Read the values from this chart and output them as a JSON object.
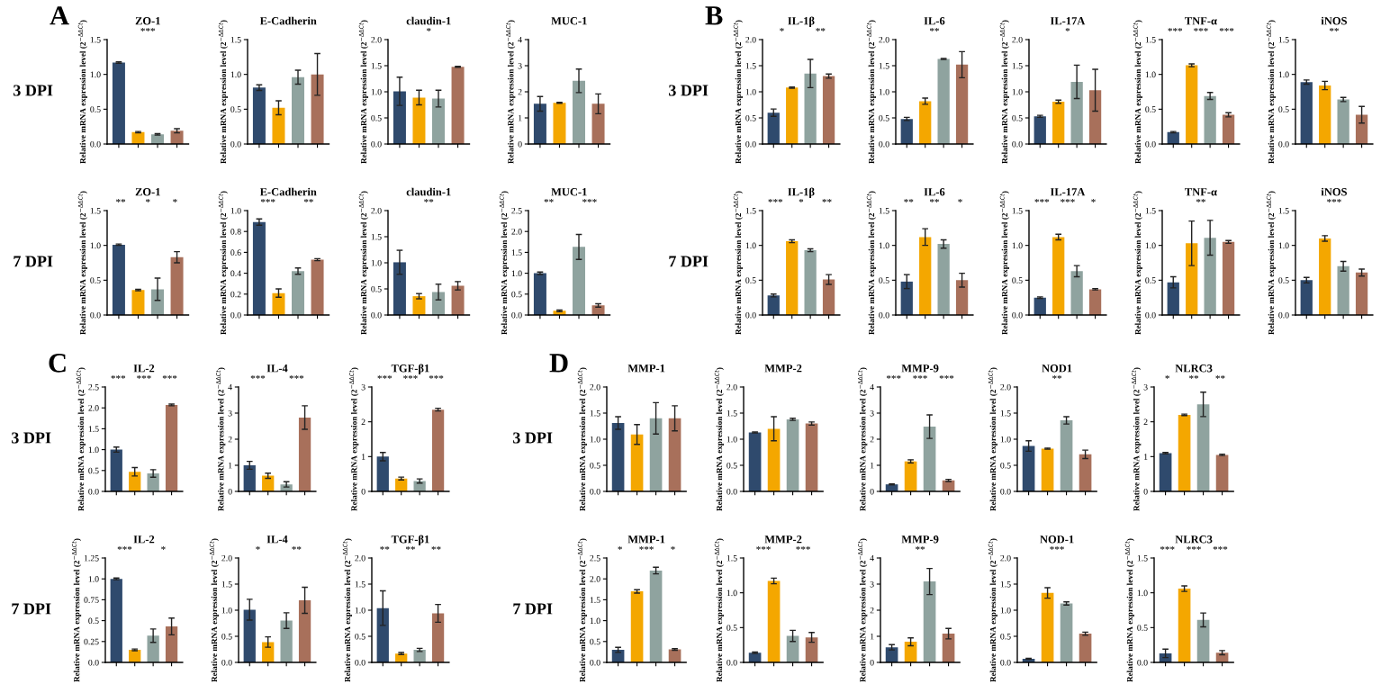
{
  "chart_data": [
    {
      "type": "bar",
      "title": "ZO-1",
      "ylabel": "Relative mRNA expression level (2$^{−ΔΔCt}$)",
      "categories": [
        null,
        null,
        null,
        null
      ],
      "values": [
        1.17,
        0.17,
        0.14,
        0.19
      ],
      "errors": [
        0.01,
        0.01,
        0.01,
        0.03
      ],
      "colors": [
        "#2f4a6d",
        "#f4a700",
        "#8fa39f",
        "#a8705b"
      ],
      "ylim": [
        0,
        1.5
      ],
      "yticks": [
        {
          "value": 0,
          "label": "0.0"
        },
        0.5,
        {
          "value": 1,
          "label": "1.0"
        },
        1.5
      ],
      "annotations": [
        "A",
        "3 DPI",
        "***"
      ]
    },
    {
      "type": "bar",
      "title": "E-Cadherin",
      "ylabel": "Relative mRNA expression level (2$^{−ΔΔCt}$)",
      "categories": [
        null,
        null,
        null,
        null
      ],
      "values": [
        0.81,
        0.52,
        0.96,
        1.0
      ],
      "errors": [
        0.04,
        0.1,
        0.1,
        0.3
      ],
      "colors": [
        "#2f4a6d",
        "#f4a700",
        "#8fa39f",
        "#a8705b"
      ],
      "ylim": [
        0,
        1.5
      ],
      "yticks": [
        {
          "value": 0,
          "label": "0.0"
        },
        0.5,
        {
          "value": 1,
          "label": "1.0"
        },
        1.5
      ]
    },
    {
      "type": "bar",
      "title": "claudin-1",
      "ylabel": "Relative mRNA expression level (2$^{−ΔΔCt}$)",
      "categories": [
        null,
        null,
        null,
        null
      ],
      "values": [
        1.01,
        0.89,
        0.87,
        1.48
      ],
      "errors": [
        0.27,
        0.14,
        0.16,
        0.01
      ],
      "colors": [
        "#2f4a6d",
        "#f4a700",
        "#8fa39f",
        "#a8705b"
      ],
      "ylim": [
        0,
        2.0
      ],
      "yticks": [
        {
          "value": 0,
          "label": "0.0"
        },
        0.5,
        {
          "value": 1,
          "label": "1.0"
        },
        1.5,
        {
          "value": 2,
          "label": "2.0"
        }
      ],
      "annotations": [
        "*"
      ]
    },
    {
      "type": "bar",
      "title": "MUC-1",
      "ylabel": "Relative mRNA expression level (2$^{−ΔΔCt}$)",
      "categories": [
        null,
        null,
        null,
        null
      ],
      "values": [
        1.54,
        1.58,
        2.42,
        1.54
      ],
      "errors": [
        0.28,
        0.02,
        0.45,
        0.38
      ],
      "colors": [
        "#2f4a6d",
        "#f4a700",
        "#8fa39f",
        "#a8705b"
      ],
      "ylim": [
        0,
        4
      ],
      "yticks": [
        0,
        1,
        2,
        3,
        4
      ]
    },
    {
      "type": "bar",
      "title": "ZO-1",
      "ylabel": "Relative mRNA expression level (2$^{−ΔΔCt}$)",
      "categories": [
        null,
        null,
        null,
        null
      ],
      "values": [
        1.01,
        0.36,
        0.37,
        0.83
      ],
      "errors": [
        0.01,
        0.01,
        0.16,
        0.08
      ],
      "colors": [
        "#2f4a6d",
        "#f4a700",
        "#8fa39f",
        "#a8705b"
      ],
      "ylim": [
        0,
        1.5
      ],
      "yticks": [
        {
          "value": 0,
          "label": "0.0"
        },
        0.5,
        {
          "value": 1,
          "label": "1.0"
        },
        1.5
      ],
      "annotations": [
        "7 DPI",
        "**",
        "*",
        "*"
      ]
    },
    {
      "type": "bar",
      "title": "E-Cadherin",
      "ylabel": "Relative mRNA expression level (2$^{−ΔΔCt}$)",
      "categories": [
        null,
        null,
        null,
        null
      ],
      "values": [
        0.89,
        0.21,
        0.42,
        0.53
      ],
      "errors": [
        0.03,
        0.04,
        0.03,
        0.01
      ],
      "colors": [
        "#2f4a6d",
        "#f4a700",
        "#8fa39f",
        "#a8705b"
      ],
      "ylim": [
        0,
        1.0
      ],
      "yticks": [
        {
          "value": 0,
          "label": "0.0"
        },
        0.2,
        0.4,
        0.6,
        0.8,
        {
          "value": 1,
          "label": "1.0"
        }
      ],
      "annotations": [
        "***",
        "**"
      ]
    },
    {
      "type": "bar",
      "title": "claudin-1",
      "ylabel": "Relative mRNA expression level (2$^{−ΔΔCt}$)",
      "categories": [
        null,
        null,
        null,
        null
      ],
      "values": [
        1.01,
        0.36,
        0.44,
        0.56
      ],
      "errors": [
        0.23,
        0.05,
        0.15,
        0.08
      ],
      "colors": [
        "#2f4a6d",
        "#f4a700",
        "#8fa39f",
        "#a8705b"
      ],
      "ylim": [
        0,
        2.0
      ],
      "yticks": [
        {
          "value": 0,
          "label": "0.0"
        },
        0.5,
        {
          "value": 1,
          "label": "1.0"
        },
        1.5,
        {
          "value": 2,
          "label": "2.0"
        }
      ],
      "annotations": [
        "**"
      ]
    },
    {
      "type": "bar",
      "title": "MUC-1",
      "ylabel": "Relative mRNA expression level (2$^{−ΔΔCt}$)",
      "categories": [
        null,
        null,
        null,
        null
      ],
      "values": [
        1.0,
        0.1,
        1.63,
        0.23
      ],
      "errors": [
        0.03,
        0.02,
        0.3,
        0.04
      ],
      "colors": [
        "#2f4a6d",
        "#f4a700",
        "#8fa39f",
        "#a8705b"
      ],
      "ylim": [
        0,
        2.5
      ],
      "yticks": [
        {
          "value": 0,
          "label": "0.0"
        },
        0.5,
        {
          "value": 1,
          "label": "1.0"
        },
        1.5,
        {
          "value": 2,
          "label": "2.0"
        },
        2.5
      ],
      "annotations": [
        "**",
        "***"
      ]
    },
    {
      "type": "bar",
      "title": "IL-1β",
      "ylabel": "Relative mRNA expression level (2$^{−ΔΔCt}$)",
      "categories": [
        null,
        null,
        null,
        null
      ],
      "values": [
        0.6,
        1.08,
        1.35,
        1.3
      ],
      "errors": [
        0.07,
        0.01,
        0.27,
        0.04
      ],
      "colors": [
        "#2f4a6d",
        "#f4a700",
        "#8fa39f",
        "#a8705b"
      ],
      "ylim": [
        0,
        2.0
      ],
      "yticks": [
        {
          "value": 0,
          "label": "0.0"
        },
        0.5,
        {
          "value": 1,
          "label": "1.0"
        },
        1.5,
        {
          "value": 2,
          "label": "2.0"
        }
      ],
      "annotations": [
        "B",
        "3 DPI",
        "*",
        "**"
      ]
    },
    {
      "type": "bar",
      "title": "IL-6",
      "ylabel": "Relative mRNA expression level (2$^{−ΔΔCt}$)",
      "categories": [
        null,
        null,
        null,
        null
      ],
      "values": [
        0.48,
        0.82,
        1.63,
        1.52
      ],
      "errors": [
        0.03,
        0.06,
        0.01,
        0.25
      ],
      "colors": [
        "#2f4a6d",
        "#f4a700",
        "#8fa39f",
        "#a8705b"
      ],
      "ylim": [
        0,
        2.0
      ],
      "yticks": [
        {
          "value": 0,
          "label": "0.0"
        },
        0.5,
        {
          "value": 1,
          "label": "1.0"
        },
        1.5,
        {
          "value": 2,
          "label": "2.0"
        }
      ],
      "annotations": [
        "**"
      ]
    },
    {
      "type": "bar",
      "title": "IL-17A",
      "ylabel": "Relative mRNA expression level (2$^{−ΔΔCt}$)",
      "categories": [
        null,
        null,
        null,
        null
      ],
      "values": [
        0.53,
        0.81,
        1.19,
        1.03
      ],
      "errors": [
        0.02,
        0.03,
        0.32,
        0.4
      ],
      "colors": [
        "#2f4a6d",
        "#f4a700",
        "#8fa39f",
        "#a8705b"
      ],
      "ylim": [
        0,
        2.0
      ],
      "yticks": [
        {
          "value": 0,
          "label": "0.0"
        },
        0.5,
        {
          "value": 1,
          "label": "1.0"
        },
        1.5,
        {
          "value": 2,
          "label": "2.0"
        }
      ],
      "annotations": [
        "*"
      ]
    },
    {
      "type": "bar",
      "title": "TNF-α",
      "ylabel": "Relative mRNA expression level (2$^{−ΔΔCt}$)",
      "categories": [
        null,
        null,
        null,
        null
      ],
      "values": [
        0.17,
        1.13,
        0.69,
        0.42
      ],
      "errors": [
        0.01,
        0.02,
        0.05,
        0.03
      ],
      "colors": [
        "#2f4a6d",
        "#f4a700",
        "#8fa39f",
        "#a8705b"
      ],
      "ylim": [
        0,
        1.5
      ],
      "yticks": [
        {
          "value": 0,
          "label": "0.0"
        },
        0.5,
        {
          "value": 1,
          "label": "1.0"
        },
        1.5
      ],
      "annotations": [
        "***",
        "***",
        "***"
      ]
    },
    {
      "type": "bar",
      "title": "iNOS",
      "ylabel": "Relative mRNA expression level (2$^{−ΔΔCt}$)",
      "categories": [
        null,
        null,
        null,
        null
      ],
      "values": [
        0.89,
        0.84,
        0.64,
        0.42
      ],
      "errors": [
        0.03,
        0.06,
        0.03,
        0.12
      ],
      "colors": [
        "#2f4a6d",
        "#f4a700",
        "#8fa39f",
        "#a8705b"
      ],
      "ylim": [
        0,
        1.5
      ],
      "yticks": [
        {
          "value": 0,
          "label": "0.0"
        },
        0.5,
        {
          "value": 1,
          "label": "1.0"
        },
        1.5
      ],
      "annotations": [
        "**"
      ]
    },
    {
      "type": "bar",
      "title": "IL-1β",
      "ylabel": "Relative mRNA expression level (2$^{−ΔΔCt}$)",
      "categories": [
        null,
        null,
        null,
        null
      ],
      "values": [
        0.28,
        1.06,
        0.93,
        0.51
      ],
      "errors": [
        0.02,
        0.02,
        0.02,
        0.07
      ],
      "colors": [
        "#2f4a6d",
        "#f4a700",
        "#8fa39f",
        "#a8705b"
      ],
      "ylim": [
        0,
        1.5
      ],
      "yticks": [
        {
          "value": 0,
          "label": "0.0"
        },
        0.5,
        {
          "value": 1,
          "label": "1.0"
        },
        1.5
      ],
      "annotations": [
        "7 DPI",
        "***",
        "*",
        "**"
      ]
    },
    {
      "type": "bar",
      "title": "IL-6",
      "ylabel": "Relative mRNA expression level (2$^{−ΔΔCt}$)",
      "categories": [
        null,
        null,
        null,
        null
      ],
      "values": [
        0.48,
        1.12,
        1.02,
        0.5
      ],
      "errors": [
        0.1,
        0.12,
        0.06,
        0.1
      ],
      "colors": [
        "#2f4a6d",
        "#f4a700",
        "#8fa39f",
        "#a8705b"
      ],
      "ylim": [
        0,
        1.5
      ],
      "yticks": [
        {
          "value": 0,
          "label": "0.0"
        },
        0.5,
        {
          "value": 1,
          "label": "1.0"
        },
        1.5
      ],
      "annotations": [
        "**",
        "**",
        "*"
      ]
    },
    {
      "type": "bar",
      "title": "IL-17A",
      "ylabel": "Relative mRNA expression level (2$^{−ΔΔCt}$)",
      "categories": [
        null,
        null,
        null,
        null
      ],
      "values": [
        0.25,
        1.12,
        0.63,
        0.37
      ],
      "errors": [
        0.01,
        0.04,
        0.08,
        0.01
      ],
      "colors": [
        "#2f4a6d",
        "#f4a700",
        "#8fa39f",
        "#a8705b"
      ],
      "ylim": [
        0,
        1.5
      ],
      "yticks": [
        {
          "value": 0,
          "label": "0.0"
        },
        0.5,
        {
          "value": 1,
          "label": "1.0"
        },
        1.5
      ],
      "annotations": [
        "***",
        "***",
        "*"
      ]
    },
    {
      "type": "bar",
      "title": "TNF-α",
      "ylabel": "Relative mRNA expression level (2$^{−ΔΔCt}$)",
      "categories": [
        null,
        null,
        null,
        null
      ],
      "values": [
        0.47,
        1.03,
        1.11,
        1.05
      ],
      "errors": [
        0.08,
        0.32,
        0.25,
        0.02
      ],
      "colors": [
        "#2f4a6d",
        "#f4a700",
        "#8fa39f",
        "#a8705b"
      ],
      "ylim": [
        0,
        1.5
      ],
      "yticks": [
        {
          "value": 0,
          "label": "0.0"
        },
        0.5,
        {
          "value": 1,
          "label": "1.0"
        },
        1.5
      ],
      "annotations": [
        "**"
      ]
    },
    {
      "type": "bar",
      "title": "iNOS",
      "ylabel": "Relative mRNA expression level (2$^{−ΔΔCt}$)",
      "categories": [
        null,
        null,
        null,
        null
      ],
      "values": [
        0.5,
        1.1,
        0.7,
        0.61
      ],
      "errors": [
        0.04,
        0.04,
        0.07,
        0.05
      ],
      "colors": [
        "#2f4a6d",
        "#f4a700",
        "#8fa39f",
        "#a8705b"
      ],
      "ylim": [
        0,
        1.5
      ],
      "yticks": [
        {
          "value": 0,
          "label": "0.0"
        },
        0.5,
        {
          "value": 1,
          "label": "1.0"
        },
        1.5
      ],
      "annotations": [
        "***"
      ]
    },
    {
      "type": "bar",
      "title": "IL-2",
      "ylabel": "Relative mRNA expression level (2$^{−ΔΔCt}$)",
      "categories": [
        null,
        null,
        null,
        null
      ],
      "values": [
        1.0,
        0.47,
        0.43,
        2.07
      ],
      "errors": [
        0.06,
        0.1,
        0.09,
        0.02
      ],
      "colors": [
        "#2f4a6d",
        "#f4a700",
        "#8fa39f",
        "#a8705b"
      ],
      "ylim": [
        0,
        2.5
      ],
      "yticks": [
        {
          "value": 0,
          "label": "0.0"
        },
        0.5,
        {
          "value": 1,
          "label": "1.0"
        },
        1.5,
        {
          "value": 2,
          "label": "2.0"
        },
        2.5
      ],
      "annotations": [
        "C",
        "3 DPI",
        "***",
        "***",
        "***"
      ]
    },
    {
      "type": "bar",
      "title": "IL-4",
      "ylabel": "Relative mRNA expression level (2$^{−ΔΔCt}$)",
      "categories": [
        null,
        null,
        null,
        null
      ],
      "values": [
        1.0,
        0.6,
        0.27,
        2.83
      ],
      "errors": [
        0.15,
        0.1,
        0.1,
        0.45
      ],
      "colors": [
        "#2f4a6d",
        "#f4a700",
        "#8fa39f",
        "#a8705b"
      ],
      "ylim": [
        0,
        4
      ],
      "yticks": [
        0,
        1,
        2,
        3,
        4
      ],
      "annotations": [
        "***",
        "***"
      ]
    },
    {
      "type": "bar",
      "title": "TGF-β1",
      "ylabel": "Relative mRNA expression level (2$^{−ΔΔCt}$)",
      "categories": [
        null,
        null,
        null,
        null
      ],
      "values": [
        1.0,
        0.37,
        0.3,
        2.35
      ],
      "errors": [
        0.12,
        0.04,
        0.06,
        0.04
      ],
      "colors": [
        "#2f4a6d",
        "#f4a700",
        "#8fa39f",
        "#a8705b"
      ],
      "ylim": [
        0,
        3
      ],
      "yticks": [
        0,
        1,
        2,
        3
      ],
      "annotations": [
        "***",
        "***",
        "***"
      ]
    },
    {
      "type": "bar",
      "title": "IL-2",
      "ylabel": "Relative mRNA expression level (2$^{−ΔΔCt}$)",
      "categories": [
        null,
        null,
        null,
        null
      ],
      "values": [
        1.0,
        0.15,
        0.32,
        0.43
      ],
      "errors": [
        0.01,
        0.01,
        0.08,
        0.1
      ],
      "colors": [
        "#2f4a6d",
        "#f4a700",
        "#8fa39f",
        "#a8705b"
      ],
      "ylim": [
        0,
        1.25
      ],
      "yticks": [
        {
          "value": 0,
          "label": "0.0"
        },
        0.25,
        0.5,
        0.75,
        {
          "value": 1,
          "label": "1.0"
        },
        1.25
      ],
      "annotations": [
        "7 DPI",
        "***",
        "*"
      ]
    },
    {
      "type": "bar",
      "title": "IL-4",
      "ylabel": "Relative mRNA expression level (2$^{−ΔΔCt}$)",
      "categories": [
        null,
        null,
        null,
        null
      ],
      "values": [
        1.01,
        0.39,
        0.8,
        1.19
      ],
      "errors": [
        0.2,
        0.1,
        0.15,
        0.25
      ],
      "colors": [
        "#2f4a6d",
        "#f4a700",
        "#8fa39f",
        "#a8705b"
      ],
      "ylim": [
        0,
        2.0
      ],
      "yticks": [
        {
          "value": 0,
          "label": "0.0"
        },
        0.5,
        {
          "value": 1,
          "label": "1.0"
        },
        1.5,
        {
          "value": 2,
          "label": "2.0"
        }
      ],
      "annotations": [
        "*",
        "**"
      ]
    },
    {
      "type": "bar",
      "title": "TGF-β1",
      "ylabel": "Relative mRNA expression level (2$^{−ΔΔCt}$)",
      "categories": [
        null,
        null,
        null,
        null
      ],
      "values": [
        1.04,
        0.17,
        0.24,
        0.94
      ],
      "errors": [
        0.33,
        0.02,
        0.03,
        0.17
      ],
      "colors": [
        "#2f4a6d",
        "#f4a700",
        "#8fa39f",
        "#a8705b"
      ],
      "ylim": [
        0,
        2.0
      ],
      "yticks": [
        {
          "value": 0,
          "label": "0.0"
        },
        0.5,
        {
          "value": 1,
          "label": "1.0"
        },
        1.5,
        {
          "value": 2,
          "label": "2.0"
        }
      ],
      "annotations": [
        "**",
        "**",
        "**"
      ]
    },
    {
      "type": "bar",
      "title": "MMP-1",
      "ylabel": "Relative mRNA expression level (2$^{−ΔΔCt}$)",
      "categories": [
        null,
        null,
        null,
        null
      ],
      "values": [
        1.31,
        1.09,
        1.4,
        1.4
      ],
      "errors": [
        0.12,
        0.19,
        0.3,
        0.24
      ],
      "colors": [
        "#2f4a6d",
        "#f4a700",
        "#8fa39f",
        "#a8705b"
      ],
      "ylim": [
        0,
        2.0
      ],
      "yticks": [
        {
          "value": 0,
          "label": "0.0"
        },
        0.5,
        {
          "value": 1,
          "label": "1.0"
        },
        1.5,
        {
          "value": 2,
          "label": "2.0"
        }
      ],
      "annotations": [
        "D",
        "3 DPI"
      ]
    },
    {
      "type": "bar",
      "title": "MMP-2",
      "ylabel": "Relative mRNA expression level (2$^{−ΔΔCt}$)",
      "categories": [
        null,
        null,
        null,
        null
      ],
      "values": [
        1.13,
        1.2,
        1.38,
        1.3
      ],
      "errors": [
        0.01,
        0.23,
        0.02,
        0.03
      ],
      "colors": [
        "#2f4a6d",
        "#f4a700",
        "#8fa39f",
        "#a8705b"
      ],
      "ylim": [
        0,
        2.0
      ],
      "yticks": [
        {
          "value": 0,
          "label": "0.0"
        },
        0.5,
        {
          "value": 1,
          "label": "1.0"
        },
        1.5,
        {
          "value": 2,
          "label": "2.0"
        }
      ]
    },
    {
      "type": "bar",
      "title": "MMP-9",
      "ylabel": "Relative mRNA expression level (2$^{−ΔΔCt}$)",
      "categories": [
        null,
        null,
        null,
        null
      ],
      "values": [
        0.27,
        1.15,
        2.48,
        0.42
      ],
      "errors": [
        0.02,
        0.06,
        0.45,
        0.04
      ],
      "colors": [
        "#2f4a6d",
        "#f4a700",
        "#8fa39f",
        "#a8705b"
      ],
      "ylim": [
        0,
        4
      ],
      "yticks": [
        0,
        1,
        2,
        3,
        4
      ],
      "annotations": [
        "***",
        "***",
        "***"
      ]
    },
    {
      "type": "bar",
      "title": "NOD1",
      "ylabel": "Relative mRNA expression level (2$^{−ΔΔCt}$)",
      "categories": [
        null,
        null,
        null,
        null
      ],
      "values": [
        0.87,
        0.82,
        1.36,
        0.71
      ],
      "errors": [
        0.1,
        0.01,
        0.07,
        0.08
      ],
      "colors": [
        "#2f4a6d",
        "#f4a700",
        "#8fa39f",
        "#a8705b"
      ],
      "ylim": [
        0,
        2.0
      ],
      "yticks": [
        {
          "value": 0,
          "label": "0.0"
        },
        0.5,
        {
          "value": 1,
          "label": "1.0"
        },
        1.5,
        {
          "value": 2,
          "label": "2.0"
        }
      ],
      "annotations": [
        "**"
      ]
    },
    {
      "type": "bar",
      "title": "NLRC3",
      "ylabel": "Relative mRNA expression level (2$^{−ΔΔCt}$)",
      "categories": [
        null,
        null,
        null,
        null
      ],
      "values": [
        1.1,
        2.2,
        2.5,
        1.05
      ],
      "errors": [
        0.02,
        0.02,
        0.35,
        0.02
      ],
      "colors": [
        "#2f4a6d",
        "#f4a700",
        "#8fa39f",
        "#a8705b"
      ],
      "ylim": [
        0,
        3
      ],
      "yticks": [
        0,
        1,
        2,
        3
      ],
      "annotations": [
        "*",
        "**",
        "**"
      ]
    },
    {
      "type": "bar",
      "title": "MMP-1",
      "ylabel": "Relative mRNA expression level (2$^{−ΔΔCt}$)",
      "categories": [
        null,
        null,
        null,
        null
      ],
      "values": [
        0.3,
        1.7,
        2.2,
        0.31
      ],
      "errors": [
        0.06,
        0.04,
        0.08,
        0.02
      ],
      "colors": [
        "#2f4a6d",
        "#f4a700",
        "#8fa39f",
        "#a8705b"
      ],
      "ylim": [
        0,
        2.5
      ],
      "yticks": [
        {
          "value": 0,
          "label": "0.0"
        },
        0.5,
        {
          "value": 1,
          "label": "1.0"
        },
        1.5,
        {
          "value": 2,
          "label": "2.0"
        },
        2.5
      ],
      "annotations": [
        "7 DPI",
        "*",
        "***",
        "*"
      ]
    },
    {
      "type": "bar",
      "title": "MMP-2",
      "ylabel": "Relative mRNA expression level (2$^{−ΔΔCt}$)",
      "categories": [
        null,
        null,
        null,
        null
      ],
      "values": [
        0.14,
        1.17,
        0.38,
        0.36
      ],
      "errors": [
        0.01,
        0.04,
        0.08,
        0.07
      ],
      "colors": [
        "#2f4a6d",
        "#f4a700",
        "#8fa39f",
        "#a8705b"
      ],
      "ylim": [
        0,
        1.5
      ],
      "yticks": [
        {
          "value": 0,
          "label": "0.0"
        },
        0.5,
        {
          "value": 1,
          "label": "1.0"
        },
        1.5
      ],
      "annotations": [
        "***",
        "***"
      ]
    },
    {
      "type": "bar",
      "title": "MMP-9",
      "ylabel": "Relative mRNA expression level (2$^{−ΔΔCt}$)",
      "categories": [
        null,
        null,
        null,
        null
      ],
      "values": [
        0.58,
        0.79,
        3.1,
        1.1
      ],
      "errors": [
        0.1,
        0.15,
        0.5,
        0.2
      ],
      "colors": [
        "#2f4a6d",
        "#f4a700",
        "#8fa39f",
        "#a8705b"
      ],
      "ylim": [
        0,
        4
      ],
      "yticks": [
        0,
        1,
        2,
        3,
        4
      ],
      "annotations": [
        "**"
      ]
    },
    {
      "type": "bar",
      "title": "NOD-1",
      "ylabel": "Relative mRNA expression level (2$^{−ΔΔCt}$)",
      "categories": [
        null,
        null,
        null,
        null
      ],
      "values": [
        0.07,
        1.33,
        1.13,
        0.55
      ],
      "errors": [
        0.01,
        0.1,
        0.03,
        0.03
      ],
      "colors": [
        "#2f4a6d",
        "#f4a700",
        "#8fa39f",
        "#a8705b"
      ],
      "ylim": [
        0,
        2.0
      ],
      "yticks": [
        {
          "value": 0,
          "label": "0.0"
        },
        0.5,
        {
          "value": 1,
          "label": "1.0"
        },
        1.5,
        {
          "value": 2,
          "label": "2.0"
        }
      ],
      "annotations": [
        "***"
      ]
    },
    {
      "type": "bar",
      "title": "NLRC3",
      "ylabel": "Relative mRNA expression level (2$^{−ΔΔCt}$)",
      "categories": [
        null,
        null,
        null,
        null
      ],
      "values": [
        0.13,
        1.06,
        0.61,
        0.14
      ],
      "errors": [
        0.06,
        0.04,
        0.1,
        0.03
      ],
      "colors": [
        "#2f4a6d",
        "#f4a700",
        "#8fa39f",
        "#a8705b"
      ],
      "ylim": [
        0,
        1.5
      ],
      "yticks": [
        {
          "value": 0,
          "label": "0.0"
        },
        0.5,
        {
          "value": 1,
          "label": "1.0"
        },
        1.5
      ],
      "annotations": [
        "***",
        "***",
        "***"
      ]
    }
  ]
}
